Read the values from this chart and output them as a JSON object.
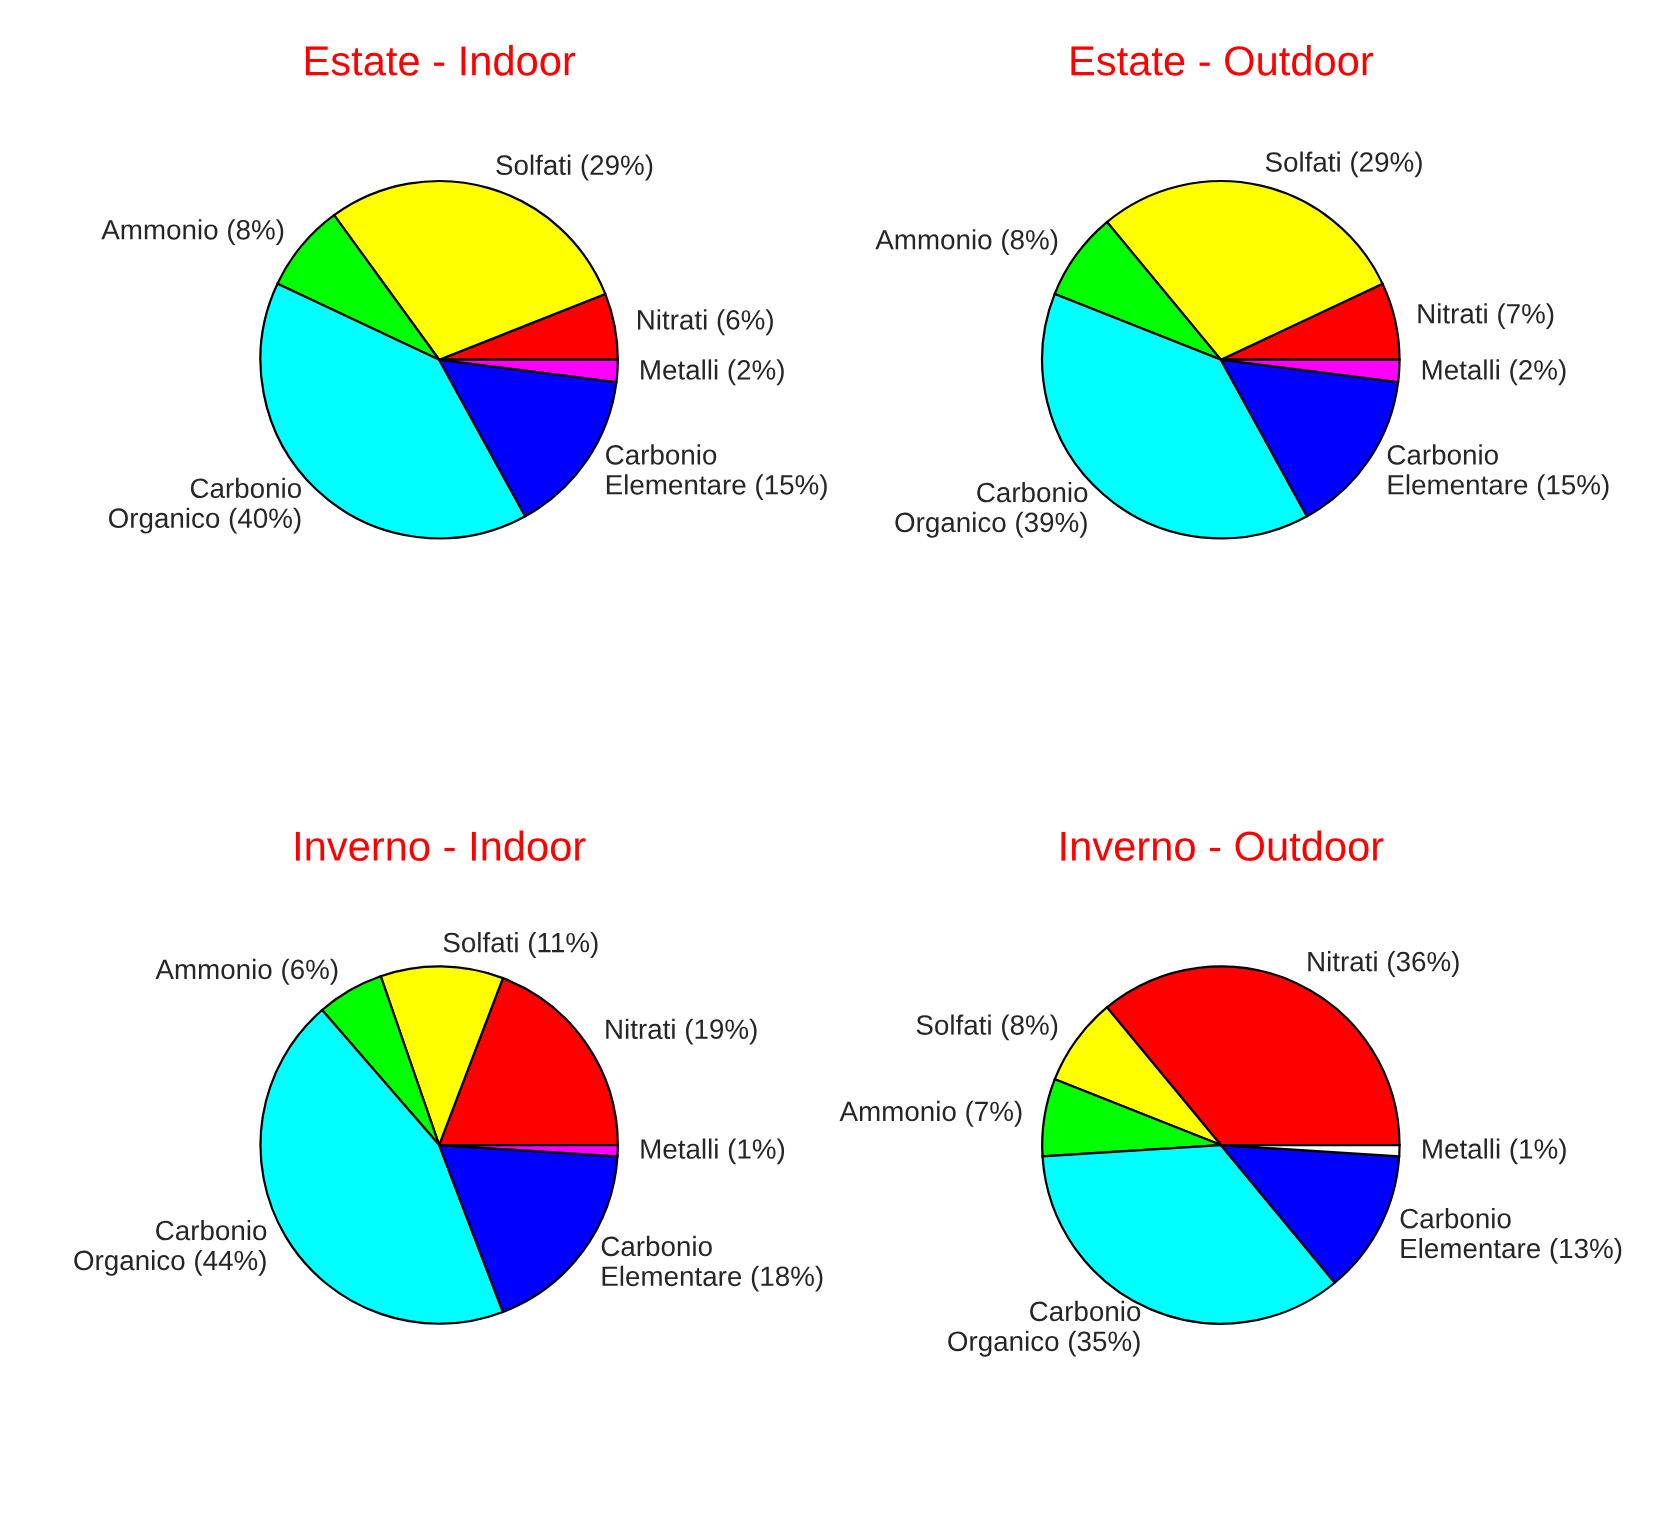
{
  "chart_data": [
    {
      "type": "pie",
      "title": "Estate - Indoor",
      "categories": [
        "Nitrati (6%)",
        "Solfati (29%)",
        "Ammonio (8%)",
        "Carbonio\nOrganico (40%)",
        "Carbonio\nElementare (15%)",
        "Metalli (2%)"
      ],
      "values": [
        6,
        29,
        8,
        40,
        15,
        2
      ],
      "colors": [
        "#ff0000",
        "#ffff00",
        "#00ff00",
        "#00ffff",
        "#0000ff",
        "#ff00ff"
      ]
    },
    {
      "type": "pie",
      "title": "Estate - Outdoor",
      "categories": [
        "Nitrati (7%)",
        "Solfati (29%)",
        "Ammonio (8%)",
        "Carbonio\nOrganico (39%)",
        "Carbonio\nElementare (15%)",
        "Metalli (2%)"
      ],
      "values": [
        7,
        29,
        8,
        39,
        15,
        2
      ],
      "colors": [
        "#ff0000",
        "#ffff00",
        "#00ff00",
        "#00ffff",
        "#0000ff",
        "#ff00ff"
      ]
    },
    {
      "type": "pie",
      "title": "Inverno - Indoor",
      "categories": [
        "Nitrati (19%)",
        "Solfati (11%)",
        "Ammonio (6%)",
        "Carbonio\nOrganico (44%)",
        "Carbonio\nElementare (18%)",
        "Metalli (1%)"
      ],
      "values": [
        19,
        11,
        6,
        44,
        18,
        1
      ],
      "colors": [
        "#ff0000",
        "#ffff00",
        "#00ff00",
        "#00ffff",
        "#0000ff",
        "#ff00ff"
      ]
    },
    {
      "type": "pie",
      "title": "Inverno - Outdoor",
      "categories": [
        "Nitrati (36%)",
        "Solfati (8%)",
        "Ammonio (7%)",
        "Carbonio\nOrganico (35%)",
        "Carbonio\nElementare (13%)",
        "Metalli (1%)"
      ],
      "values": [
        36,
        8,
        7,
        35,
        13,
        1
      ],
      "colors": [
        "#ff0000",
        "#ffff00",
        "#00ff00",
        "#00ffff",
        "#0000ff",
        "#ffffff"
      ]
    }
  ]
}
